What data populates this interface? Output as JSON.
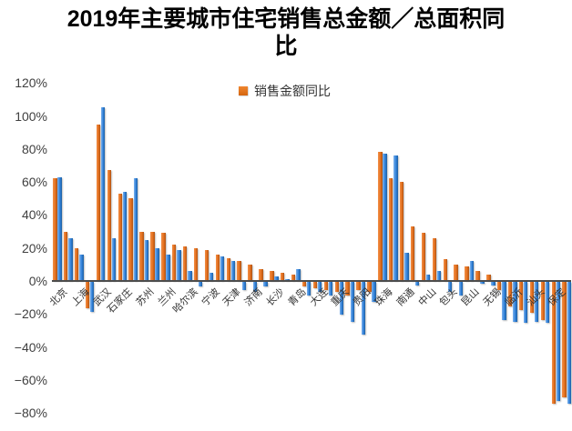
{
  "title": "2019年主要城市住宅销售总金额／总面积同比",
  "legend": {
    "label": "销售金额同比",
    "swatch_color": "#E4701E"
  },
  "colors": {
    "amount_bar": "#E4701E",
    "area_bar": "#3181DB",
    "axis_line": "#4d4d4d",
    "text": "#333333"
  },
  "chart_data": {
    "type": "bar",
    "title": "2019年主要城市住宅销售总金额／总面积同比",
    "legend_visible_entries": [
      "销售金额同比"
    ],
    "legend_position": "top-center",
    "grid": false,
    "ylim": [
      -80,
      120
    ],
    "y_tick_step": 20,
    "y_ticks": [
      "120%",
      "100%",
      "80%",
      "60%",
      "40%",
      "20%",
      "0%",
      "−20%",
      "−40%",
      "−60%",
      "−80%"
    ],
    "categories": [
      "北京",
      "",
      "上海",
      "",
      "武汉",
      "",
      "石家庄",
      "",
      "苏州",
      "",
      "兰州",
      "",
      "哈尔滨",
      "",
      "宁波",
      "",
      "天津",
      "",
      "济南",
      "",
      "长沙",
      "",
      "青岛",
      "",
      "大连",
      "",
      "重庆",
      "",
      "贵阳",
      "",
      "珠海",
      "",
      "南通",
      "",
      "中山",
      "",
      "包头",
      "",
      "昆山",
      "",
      "无锡",
      "",
      "临沂",
      "",
      "汕头",
      "",
      "保定",
      ""
    ],
    "series": [
      {
        "name": "销售金额同比",
        "color": "#E4701E",
        "values": [
          62,
          30,
          20,
          -16,
          95,
          67,
          53,
          50,
          30,
          30,
          29,
          22,
          21,
          20,
          19,
          16,
          14,
          12,
          10,
          7,
          6,
          5,
          4,
          -3,
          -4,
          -5,
          -6,
          -8,
          -5,
          -6,
          78,
          62,
          60,
          33,
          29,
          26,
          13,
          10,
          9,
          6,
          4,
          -5,
          -15,
          -17,
          -19,
          -23,
          -74,
          -70
        ]
      },
      {
        "name": "",
        "color": "#3181DB",
        "values": [
          63,
          26,
          16,
          -18,
          105,
          26,
          54,
          62,
          25,
          20,
          16,
          19,
          6,
          -3,
          5,
          15,
          12,
          -5,
          -6,
          -3,
          3,
          1,
          7,
          -8,
          -6,
          -8,
          -20,
          -24,
          -32,
          -12,
          77,
          76,
          17,
          -2,
          4,
          6,
          -6,
          -8,
          12,
          -1,
          -2,
          -23,
          -24,
          -25,
          -24,
          -25,
          -72,
          -74
        ]
      }
    ]
  }
}
